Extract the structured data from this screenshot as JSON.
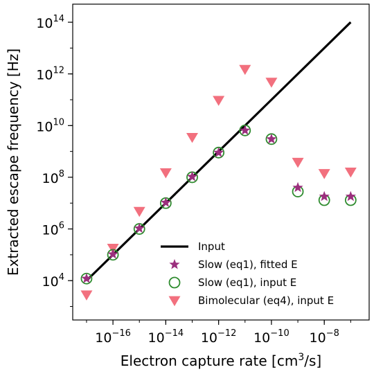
{
  "chart_data": {
    "type": "scatter",
    "xlabel": "Electron capture rate [cm³/s]",
    "ylabel": "Extracted escape frequency [Hz]",
    "x_scale": "log",
    "y_scale": "log",
    "xlim": [
      3e-18,
      5e-07
    ],
    "ylim": [
      300.0,
      500000000000000.0
    ],
    "x_ticks": [
      1e-16,
      1e-14,
      1e-12,
      1e-10,
      1e-08
    ],
    "x_tick_labels": [
      {
        "base": "10",
        "exp": "−16"
      },
      {
        "base": "10",
        "exp": "−14"
      },
      {
        "base": "10",
        "exp": "−12"
      },
      {
        "base": "10",
        "exp": "−10"
      },
      {
        "base": "10",
        "exp": "−8"
      }
    ],
    "y_ticks": [
      10000.0,
      1000000.0,
      100000000.0,
      10000000000.0,
      1000000000000.0,
      100000000000000.0
    ],
    "y_tick_labels": [
      {
        "base": "10",
        "exp": "4"
      },
      {
        "base": "10",
        "exp": "6"
      },
      {
        "base": "10",
        "exp": "8"
      },
      {
        "base": "10",
        "exp": "10"
      },
      {
        "base": "10",
        "exp": "12"
      },
      {
        "base": "10",
        "exp": "14"
      }
    ],
    "grid": false,
    "legend_position": "lower-right",
    "series": [
      {
        "name": "Input",
        "kind": "line",
        "color": "#000000",
        "x": [
          1e-17,
          1e-07
        ],
        "y": [
          10000.0,
          100000000000000.0
        ]
      },
      {
        "name": "Slow (eq1), fitted E",
        "kind": "star",
        "color": "#9b2f7d",
        "x": [
          1e-17,
          1e-16,
          1e-15,
          1e-14,
          1e-13,
          1e-12,
          1e-11,
          1e-10,
          1e-09,
          1e-08,
          1e-07
        ],
        "y": [
          12000.0,
          105000.0,
          1050000.0,
          10500000.0,
          105000000.0,
          900000000.0,
          6500000000.0,
          3000000000.0,
          40000000.0,
          18000000.0,
          18000000.0
        ]
      },
      {
        "name": "Slow (eq1), input E",
        "kind": "circle",
        "color": "#2e8b2e",
        "x": [
          1e-17,
          1e-16,
          1e-15,
          1e-14,
          1e-13,
          1e-12,
          1e-11,
          1e-10,
          1e-09,
          1e-08,
          1e-07
        ],
        "y": [
          12000.0,
          100000.0,
          1000000.0,
          10000000.0,
          100000000.0,
          900000000.0,
          6500000000.0,
          3000000000.0,
          28000000.0,
          13000000.0,
          13000000.0
        ]
      },
      {
        "name": "Bimolecular (eq4), input E",
        "kind": "triangle-down",
        "color": "#f2707e",
        "x": [
          1e-17,
          1e-16,
          1e-15,
          1e-14,
          1e-13,
          1e-12,
          1e-11,
          1e-10,
          1e-09,
          1e-08,
          1e-07
        ],
        "y": [
          2800.0,
          180000.0,
          4800000.0,
          150000000.0,
          3500000000.0,
          95000000000.0,
          1500000000000.0,
          480000000000.0,
          380000000.0,
          140000000.0,
          160000000.0
        ]
      }
    ]
  }
}
